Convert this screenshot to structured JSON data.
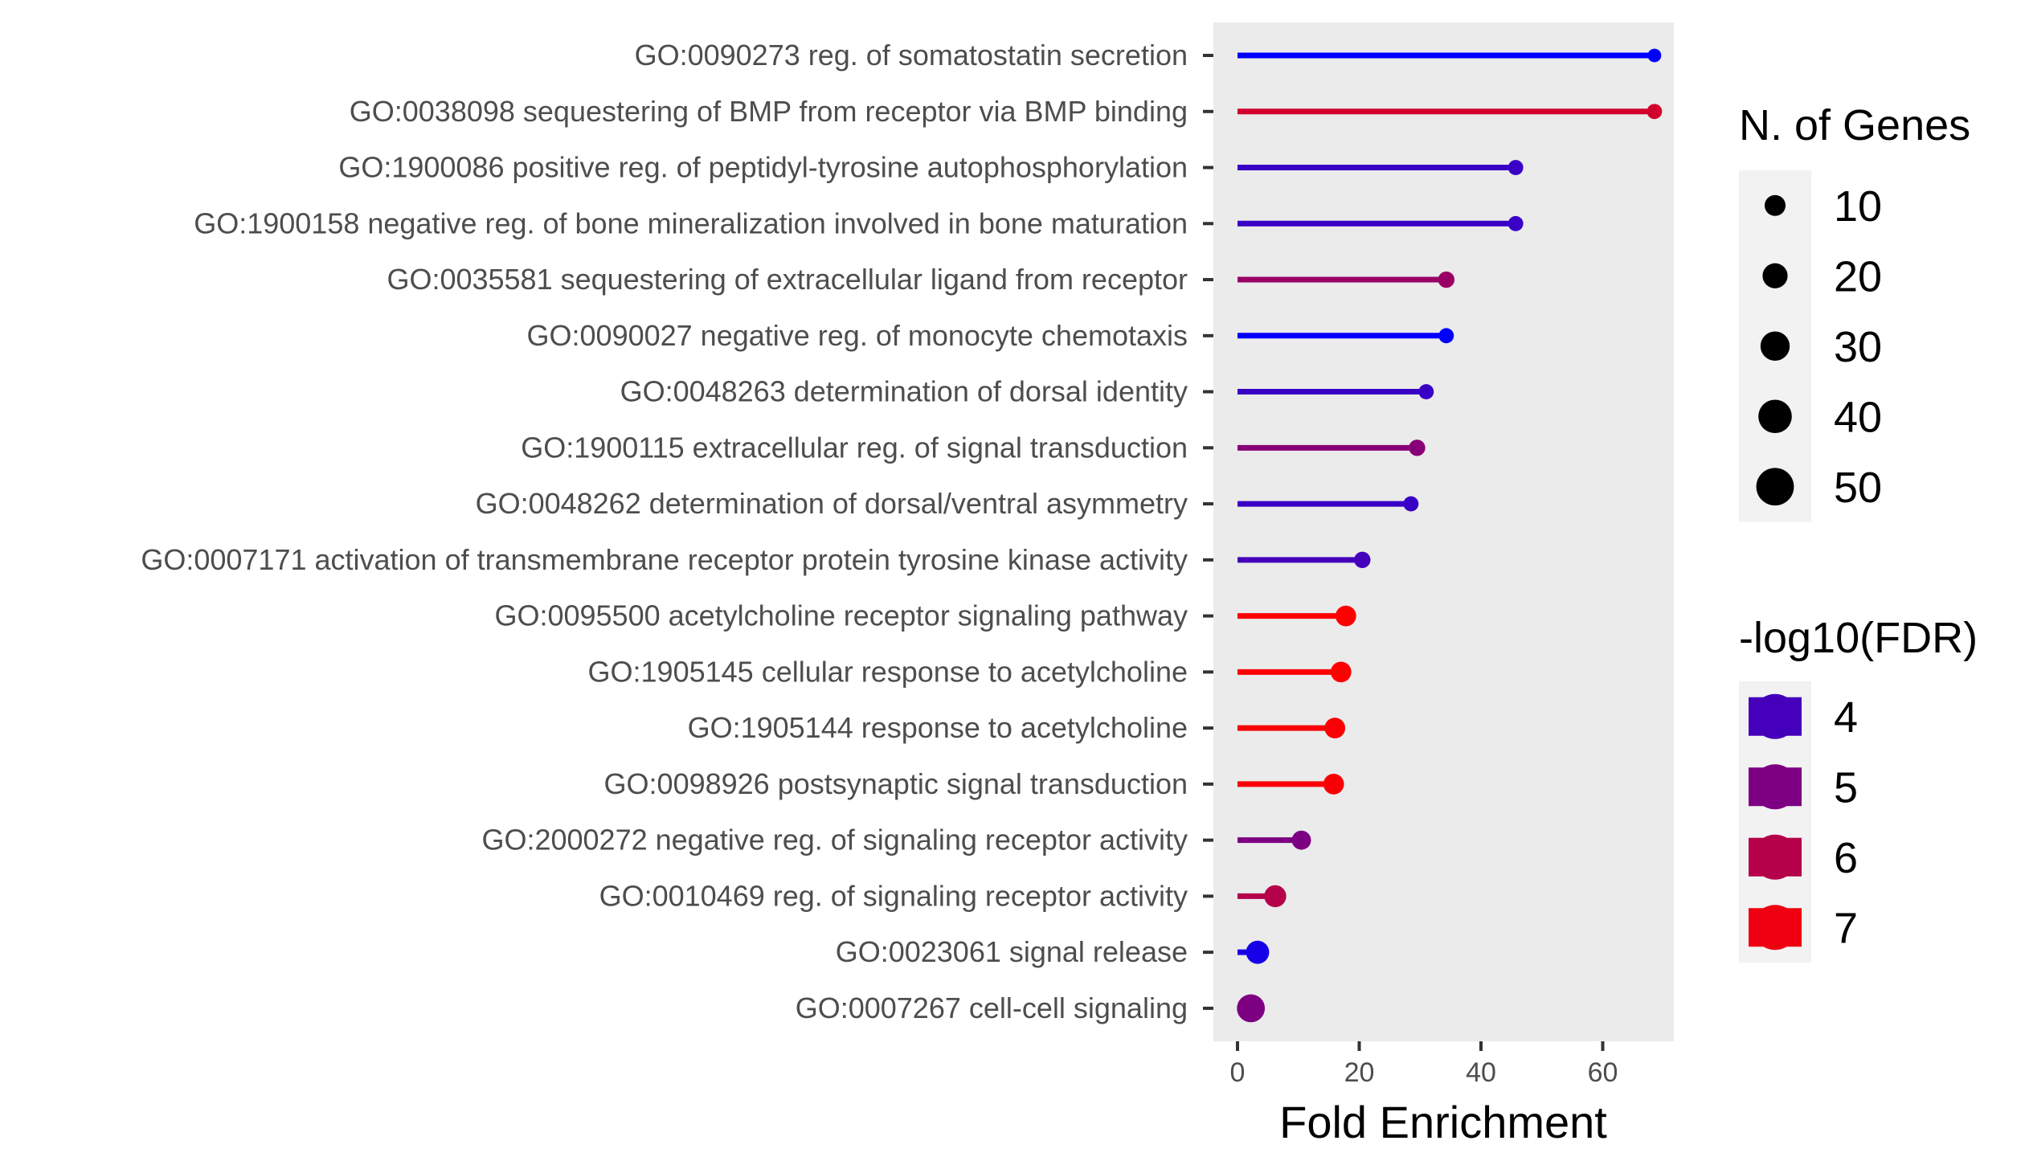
{
  "chart_data": {
    "type": "lollipop",
    "xlabel": "Fold Enrichment",
    "xlim": [
      0,
      72
    ],
    "xticks": [
      0,
      20,
      40,
      60
    ],
    "grid": false,
    "legend_placement": "right",
    "categories": [
      "GO:0090273 reg. of somatostatin secretion",
      "GO:0038098 sequestering of BMP from receptor via BMP binding",
      "GO:1900086 positive reg. of peptidyl-tyrosine autophosphorylation",
      "GO:1900158 negative reg. of bone mineralization involved in bone maturation",
      "GO:0035581 sequestering of extracellular ligand from receptor",
      "GO:0090027 negative reg. of monocyte chemotaxis",
      "GO:0048263 determination of dorsal identity",
      "GO:1900115 extracellular reg. of signal transduction",
      "GO:0048262 determination of dorsal/ventral asymmetry",
      "GO:0007171 activation of transmembrane receptor protein tyrosine kinase activity",
      "GO:0095500 acetylcholine receptor signaling pathway",
      "GO:1905145 cellular response to acetylcholine",
      "GO:1905144 response to acetylcholine",
      "GO:0098926 postsynaptic signal transduction",
      "GO:2000272 negative reg. of signaling receptor activity",
      "GO:0010469 reg. of signaling receptor activity",
      "GO:0023061 signal release",
      "GO:0007267 cell-cell signaling"
    ],
    "fold_enrichment": [
      68.5,
      68.5,
      45.7,
      45.7,
      34.3,
      34.3,
      31.0,
      29.5,
      28.5,
      20.5,
      17.8,
      17.0,
      16.0,
      15.8,
      10.5,
      6.2,
      3.3,
      2.2
    ],
    "n_genes": [
      2,
      3,
      3,
      3,
      4,
      3,
      3,
      4,
      3,
      4,
      9,
      9,
      9,
      9,
      7,
      11,
      13,
      23
    ],
    "neg_log10_fdr": [
      2.8,
      6.5,
      3.8,
      3.8,
      5.5,
      2.8,
      3.8,
      5.2,
      3.8,
      4.0,
      7.3,
      7.3,
      7.2,
      7.2,
      5.0,
      6.0,
      3.2,
      5.0
    ],
    "size_legend": {
      "title": "N. of Genes",
      "values": [
        10,
        20,
        30,
        40,
        50
      ],
      "labels": [
        "10",
        "20",
        "30",
        "40",
        "50"
      ]
    },
    "color_legend": {
      "title": "-log10(FDR)",
      "values": [
        4,
        5,
        6,
        7
      ],
      "labels": [
        "4",
        "5",
        "6",
        "7"
      ],
      "low_color": "#0000ff",
      "high_color": "#ff0000"
    },
    "panel_background": "#ebebeb",
    "legend_key_background": "#f2f2f2"
  }
}
